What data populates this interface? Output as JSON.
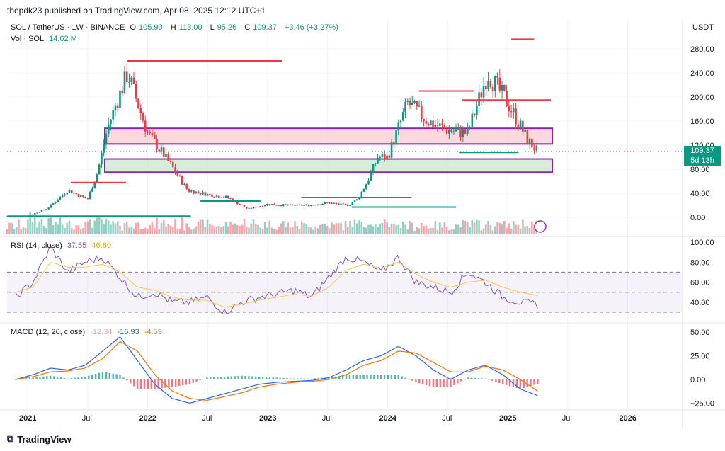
{
  "header": {
    "publisher": "thepdk23 published on TradingView.com, Apr 08, 2025 12:12 UTC+1"
  },
  "symbol": {
    "title": "SOL / TetherUS · 1W · BINANCE",
    "o_label": "O",
    "o_value": "105.90",
    "h_label": "H",
    "h_value": "113.00",
    "l_label": "L",
    "l_value": "95.26",
    "c_label": "C",
    "c_value": "109.37",
    "change": "+3.46 (+3.27%)",
    "vol_label": "Vol · SOL",
    "vol_value": "14.62 M"
  },
  "price_axis": {
    "currency": "USDT",
    "ticks": [
      "280.00",
      "240.00",
      "200.00",
      "160.00",
      "120.00",
      "80.00",
      "40.00",
      "0.00"
    ],
    "current_price": "109.37",
    "countdown": "5d 13h"
  },
  "rsi": {
    "label": "RSI (14, close)",
    "value1": "37.55",
    "value2": "46.60",
    "ticks": [
      "100.00",
      "80.00",
      "60.00",
      "40.00"
    ]
  },
  "macd": {
    "label": "MACD (12, 26, close)",
    "value1": "-12.34",
    "value2": "-16.93",
    "value3": "-4.59",
    "ticks": [
      "50.00",
      "25.00",
      "0.00",
      "−25.00"
    ]
  },
  "time_axis": {
    "labels": [
      "2021",
      "Jul",
      "2022",
      "Jul",
      "2023",
      "Jul",
      "2024",
      "Jul",
      "2025",
      "Jul",
      "2026"
    ]
  },
  "watermark": {
    "text": "TradingView"
  },
  "colors": {
    "up": "#089981",
    "down": "#f23645",
    "rsi": "#7e57c2",
    "rsi_ma": "#f7c948",
    "macd": "#2962ff",
    "signal": "#ff6d00",
    "zone_red": "#f8c8d0",
    "zone_green": "#c8e6c9",
    "zone_border": "#8e24aa"
  },
  "chart_data": [
    {
      "type": "candlestick",
      "title": "SOL / TetherUS · 1W · BINANCE",
      "ylim": [
        0,
        300
      ],
      "yticks": [
        0,
        40,
        80,
        120,
        160,
        200,
        240,
        280
      ],
      "x": [
        "2021-01",
        "2021-03",
        "2021-05",
        "2021-07",
        "2021-08",
        "2021-09",
        "2021-11",
        "2022-01",
        "2022-03",
        "2022-05",
        "2022-07",
        "2022-09",
        "2022-11",
        "2023-01",
        "2023-03",
        "2023-05",
        "2023-07",
        "2023-09",
        "2023-10",
        "2023-11",
        "2023-12",
        "2024-01",
        "2024-03",
        "2024-05",
        "2024-07",
        "2024-09",
        "2024-11",
        "2025-01",
        "2025-02",
        "2025-03",
        "2025-04"
      ],
      "close": [
        2,
        15,
        45,
        30,
        75,
        150,
        240,
        140,
        95,
        45,
        38,
        33,
        14,
        22,
        20,
        20,
        24,
        20,
        30,
        60,
        100,
        100,
        190,
        160,
        145,
        140,
        240,
        190,
        160,
        128,
        109
      ],
      "annotations": {
        "resistance_zone": [
          122,
          148
        ],
        "support_zone": [
          75,
          97
        ]
      }
    },
    {
      "type": "line",
      "title": "RSI (14, close)",
      "ylim": [
        20,
        100
      ],
      "series": [
        {
          "name": "RSI",
          "values": [
            45,
            60,
            95,
            70,
            80,
            85,
            65,
            45,
            50,
            40,
            40,
            45,
            30,
            40,
            45,
            48,
            52,
            45,
            65,
            85,
            80,
            70,
            85,
            60,
            55,
            50,
            70,
            60,
            45,
            40,
            37.55
          ]
        },
        {
          "name": "RSI MA",
          "values": [
            50,
            55,
            80,
            75,
            75,
            78,
            70,
            55,
            52,
            45,
            42,
            42,
            35,
            38,
            42,
            45,
            48,
            46,
            55,
            72,
            78,
            74,
            80,
            68,
            60,
            55,
            60,
            62,
            55,
            50,
            46.6
          ]
        }
      ]
    },
    {
      "type": "line",
      "title": "MACD (12, 26, close)",
      "ylim": [
        -30,
        60
      ],
      "series": [
        {
          "name": "MACD",
          "values": [
            0,
            5,
            12,
            10,
            15,
            30,
            45,
            20,
            -5,
            -20,
            -25,
            -20,
            -15,
            -10,
            -5,
            -3,
            -2,
            -1,
            2,
            10,
            20,
            25,
            35,
            25,
            10,
            0,
            10,
            15,
            5,
            -10,
            -16.93
          ]
        },
        {
          "name": "Signal",
          "values": [
            0,
            3,
            8,
            9,
            12,
            22,
            40,
            30,
            5,
            -12,
            -20,
            -22,
            -18,
            -14,
            -8,
            -5,
            -3,
            -2,
            0,
            5,
            15,
            20,
            30,
            28,
            18,
            8,
            8,
            14,
            10,
            0,
            -12.34
          ]
        }
      ]
    }
  ]
}
